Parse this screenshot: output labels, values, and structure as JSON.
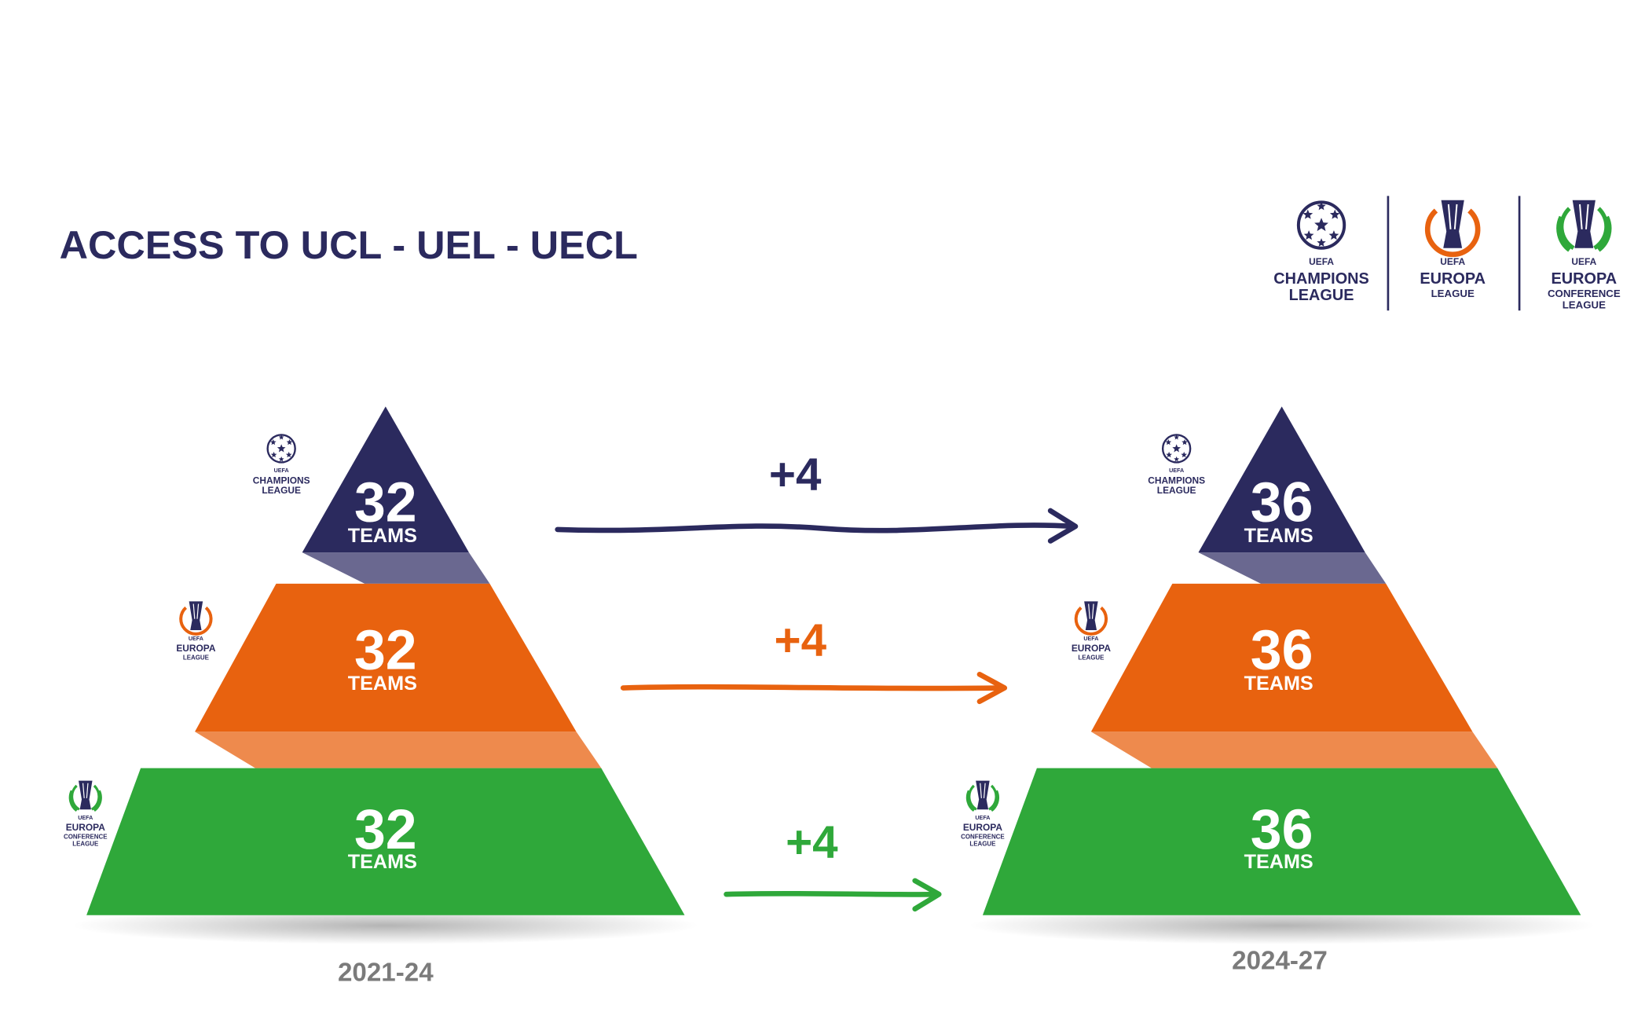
{
  "title": "ACCESS TO UCL - UEL - UECL",
  "header_logos": [
    {
      "badge": "UEFA",
      "lines": [
        "CHAMPIONS",
        "LEAGUE"
      ]
    },
    {
      "badge": "UEFA",
      "lines": [
        "EUROPA",
        "LEAGUE"
      ]
    },
    {
      "badge": "UEFA",
      "lines": [
        "EUROPA",
        "CONFERENCE",
        "LEAGUE"
      ]
    }
  ],
  "pyramids": [
    {
      "period": "2021-24",
      "tiers": [
        {
          "count": 32,
          "unit": "TEAMS"
        },
        {
          "count": 32,
          "unit": "TEAMS"
        },
        {
          "count": 32,
          "unit": "TEAMS"
        }
      ]
    },
    {
      "period": "2024-27",
      "tiers": [
        {
          "count": 36,
          "unit": "TEAMS"
        },
        {
          "count": 36,
          "unit": "TEAMS"
        },
        {
          "count": 36,
          "unit": "TEAMS"
        }
      ]
    }
  ],
  "changes": [
    "+4",
    "+4",
    "+4"
  ]
}
